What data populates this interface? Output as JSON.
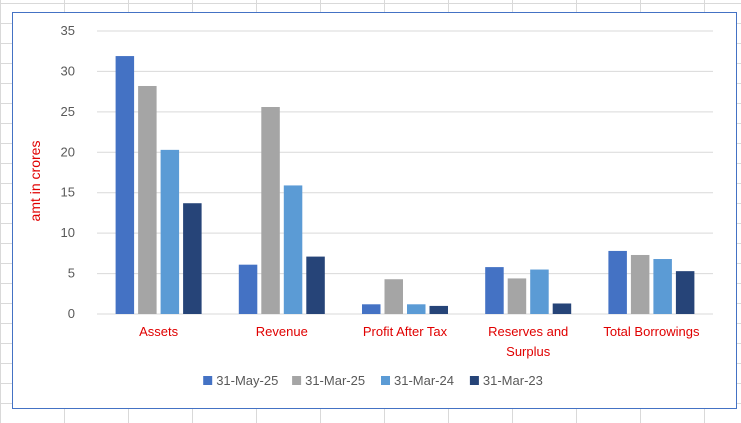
{
  "chart_data": {
    "type": "bar",
    "title": "",
    "xlabel": "",
    "ylabel": "amt in crores",
    "ylim": [
      0,
      35
    ],
    "yticks": [
      0,
      5,
      10,
      15,
      20,
      25,
      30,
      35
    ],
    "grid": true,
    "legend_position": "bottom",
    "categories": [
      "Assets",
      "Revenue",
      "Profit After Tax",
      "Reserves and Surplus",
      "Total Borrowings"
    ],
    "category_label_color": "#e00000",
    "ylabel_color": "#e00000",
    "series": [
      {
        "name": "31-May-25",
        "color": "#4472c4",
        "values": [
          31.9,
          6.1,
          1.2,
          5.8,
          7.8
        ]
      },
      {
        "name": "31-Mar-25",
        "color": "#a5a5a5",
        "values": [
          28.2,
          25.6,
          4.3,
          4.4,
          7.3
        ]
      },
      {
        "name": "31-Mar-24",
        "color": "#5b9bd5",
        "values": [
          20.3,
          15.9,
          1.2,
          5.5,
          6.8
        ]
      },
      {
        "name": "31-Mar-23",
        "color": "#264478",
        "values": [
          13.7,
          7.1,
          1.0,
          1.3,
          5.3
        ]
      }
    ]
  }
}
